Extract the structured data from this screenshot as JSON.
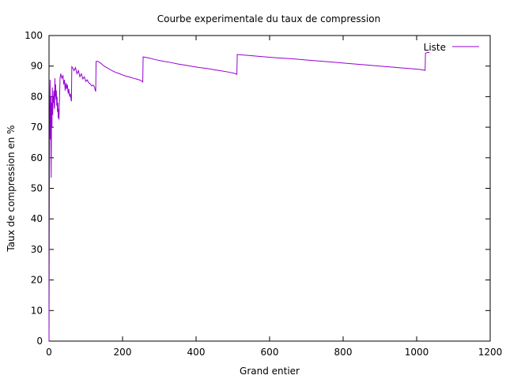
{
  "chart_data": {
    "type": "line",
    "title": "Courbe experimentale du taux de compression",
    "xlabel": "Grand entier",
    "ylabel": "Taux de compression en %",
    "xlim": [
      0,
      1200
    ],
    "ylim": [
      0,
      100
    ],
    "xticks": [
      "0",
      "200",
      "400",
      "600",
      "800",
      "1000",
      "1200"
    ],
    "yticks": [
      "0",
      "10",
      "20",
      "30",
      "40",
      "50",
      "60",
      "70",
      "80",
      "90",
      "100"
    ],
    "grid": false,
    "legend_position": "top-right",
    "series": [
      {
        "name": "Liste",
        "color": "#9400d3",
        "points": [
          [
            0,
            0
          ],
          [
            1,
            50
          ],
          [
            2,
            75
          ],
          [
            3,
            85.5
          ],
          [
            4,
            66
          ],
          [
            5,
            80
          ],
          [
            6,
            53.5
          ],
          [
            7,
            78
          ],
          [
            8,
            70
          ],
          [
            9,
            83
          ],
          [
            10,
            74
          ],
          [
            11,
            80
          ],
          [
            12,
            78
          ],
          [
            13,
            82
          ],
          [
            14,
            77
          ],
          [
            15,
            76
          ],
          [
            16,
            86
          ],
          [
            17,
            80
          ],
          [
            18,
            84
          ],
          [
            19,
            79
          ],
          [
            20,
            82
          ],
          [
            21,
            77
          ],
          [
            22,
            80
          ],
          [
            23,
            75
          ],
          [
            24,
            78
          ],
          [
            25,
            73
          ],
          [
            26,
            76
          ],
          [
            27,
            72.5
          ],
          [
            30,
            86
          ],
          [
            32,
            87.5
          ],
          [
            35,
            86
          ],
          [
            38,
            87
          ],
          [
            40,
            84
          ],
          [
            42,
            85.5
          ],
          [
            44,
            82
          ],
          [
            46,
            84.5
          ],
          [
            48,
            82.5
          ],
          [
            50,
            84
          ],
          [
            52,
            81
          ],
          [
            54,
            82.5
          ],
          [
            56,
            80
          ],
          [
            58,
            81
          ],
          [
            60,
            79
          ],
          [
            61,
            78.5
          ],
          [
            62,
            89.8
          ],
          [
            64,
            89.5
          ],
          [
            68,
            88.5
          ],
          [
            72,
            89.5
          ],
          [
            76,
            87.5
          ],
          [
            80,
            88.5
          ],
          [
            84,
            86.5
          ],
          [
            88,
            87.5
          ],
          [
            92,
            85.8
          ],
          [
            96,
            86.5
          ],
          [
            100,
            85
          ],
          [
            104,
            85.5
          ],
          [
            108,
            84.5
          ],
          [
            112,
            84.2
          ],
          [
            116,
            83.5
          ],
          [
            120,
            83.8
          ],
          [
            124,
            83
          ],
          [
            126,
            82
          ],
          [
            127,
            81.7
          ],
          [
            128,
            91.5
          ],
          [
            132,
            91.6
          ],
          [
            140,
            91
          ],
          [
            150,
            90
          ],
          [
            160,
            89.3
          ],
          [
            170,
            88.6
          ],
          [
            180,
            88
          ],
          [
            190,
            87.6
          ],
          [
            200,
            87.1
          ],
          [
            210,
            86.7
          ],
          [
            220,
            86.4
          ],
          [
            230,
            86
          ],
          [
            240,
            85.7
          ],
          [
            250,
            85.3
          ],
          [
            255,
            84.8
          ],
          [
            256,
            93
          ],
          [
            270,
            92.7
          ],
          [
            290,
            92.1
          ],
          [
            310,
            91.6
          ],
          [
            330,
            91.2
          ],
          [
            350,
            90.7
          ],
          [
            370,
            90.3
          ],
          [
            390,
            89.9
          ],
          [
            410,
            89.5
          ],
          [
            430,
            89.2
          ],
          [
            450,
            88.8
          ],
          [
            470,
            88.4
          ],
          [
            490,
            88
          ],
          [
            505,
            87.6
          ],
          [
            511,
            87.3
          ],
          [
            512,
            93.8
          ],
          [
            540,
            93.5
          ],
          [
            580,
            93.1
          ],
          [
            620,
            92.7
          ],
          [
            660,
            92.4
          ],
          [
            700,
            92
          ],
          [
            740,
            91.6
          ],
          [
            780,
            91.2
          ],
          [
            820,
            90.8
          ],
          [
            860,
            90.4
          ],
          [
            900,
            90
          ],
          [
            940,
            89.6
          ],
          [
            980,
            89.2
          ],
          [
            1010,
            88.9
          ],
          [
            1023,
            88.6
          ],
          [
            1024,
            94.2
          ],
          [
            1030,
            94.5
          ],
          [
            1035,
            94.4
          ]
        ]
      }
    ]
  }
}
